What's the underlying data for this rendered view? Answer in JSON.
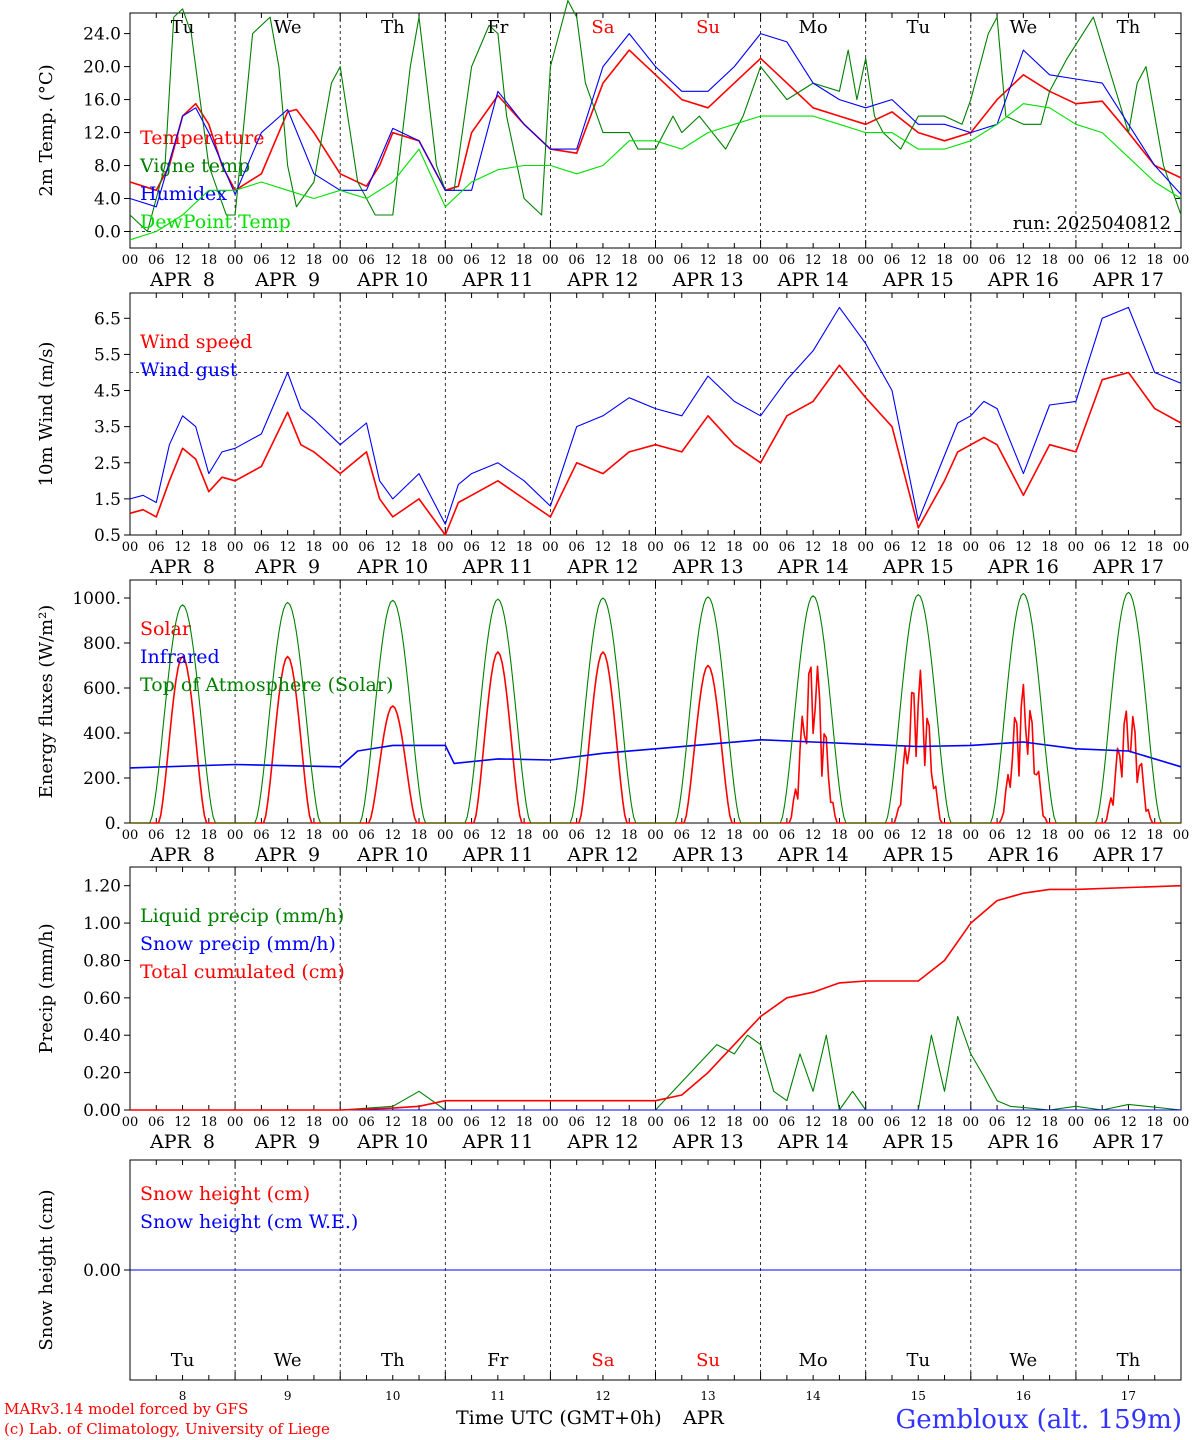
{
  "chart_data": [
    {
      "type": "line",
      "ylabel": "2m Temp. (°C)",
      "ylim": [
        -2,
        26.5
      ],
      "yticks": [
        "0.0",
        "4.0",
        "8.0",
        "12.0",
        "16.0",
        "20.0",
        "24.0"
      ],
      "yticks_values": [
        0,
        4,
        8,
        12,
        16,
        20,
        24
      ],
      "reference_line": 0,
      "annotation": "run: 2025040812",
      "day_labels": [
        "Tu",
        "We",
        "Th",
        "Fr",
        "Sa",
        "Su",
        "Mo",
        "Tu",
        "We",
        "Th"
      ],
      "series": [
        {
          "name": "Temperature",
          "color": "#ff0000",
          "x": [
            0,
            6,
            9,
            12,
            15,
            18,
            21,
            24,
            30,
            36,
            38,
            42,
            48,
            54,
            57,
            60,
            66,
            72,
            75,
            78,
            84,
            90,
            96,
            102,
            108,
            114,
            120,
            126,
            132,
            138,
            144,
            150,
            156,
            162,
            168,
            174,
            180,
            186,
            192,
            198,
            204,
            210,
            216,
            222,
            228,
            234,
            240
          ],
          "values": [
            6,
            5,
            8,
            14,
            15.5,
            13,
            8,
            5,
            7,
            14.5,
            14.8,
            12,
            7,
            5.5,
            8,
            12,
            11,
            5,
            5.5,
            12,
            16.5,
            13,
            10,
            9.5,
            18,
            22,
            19,
            16,
            15,
            18,
            21,
            18,
            15,
            14,
            13,
            14.5,
            12,
            11,
            12,
            16,
            19,
            17,
            15.5,
            15.8,
            12,
            8,
            6.5
          ]
        },
        {
          "name": "Vigne temp",
          "color": "#008000",
          "x": [
            0,
            4,
            8,
            10,
            12,
            14,
            18,
            22,
            24,
            28,
            32,
            34,
            36,
            38,
            42,
            46,
            48,
            52,
            54,
            56,
            60,
            64,
            66,
            70,
            72,
            74,
            78,
            82,
            84,
            86,
            90,
            94,
            96,
            100,
            102,
            104,
            108,
            112,
            114,
            116,
            120,
            124,
            126,
            130,
            136,
            140,
            144,
            150,
            156,
            162,
            164,
            166,
            168,
            170,
            172,
            176,
            180,
            186,
            190,
            192,
            196,
            198,
            200,
            204,
            208,
            210,
            214,
            220,
            228,
            230,
            232,
            236,
            240
          ],
          "values": [
            2,
            0,
            8,
            26,
            27,
            24,
            8,
            2,
            2,
            24,
            26,
            20,
            8,
            3,
            6,
            18,
            20,
            6,
            4,
            2,
            2,
            20,
            26,
            8,
            5,
            5,
            20,
            25,
            24,
            14,
            4,
            2,
            20,
            28,
            26,
            18,
            12,
            12,
            12,
            10,
            10,
            14,
            12,
            14,
            10,
            14,
            20,
            16,
            18,
            17,
            22,
            16,
            21,
            14,
            12,
            10,
            14,
            14,
            13,
            16,
            24,
            26,
            14,
            13,
            13,
            17,
            21,
            26,
            12,
            18,
            20,
            8,
            2
          ]
        },
        {
          "name": "Humidex",
          "color": "#0000ff",
          "x": [
            0,
            6,
            12,
            15,
            18,
            24,
            30,
            36,
            42,
            48,
            54,
            60,
            66,
            72,
            78,
            84,
            90,
            96,
            102,
            108,
            114,
            120,
            126,
            132,
            138,
            144,
            150,
            156,
            162,
            168,
            174,
            180,
            186,
            192,
            198,
            204,
            210,
            216,
            222,
            228,
            234,
            240
          ],
          "values": [
            4,
            3,
            14,
            15,
            12,
            4.5,
            12,
            14.8,
            7,
            5,
            5,
            12.5,
            11,
            5,
            5,
            17,
            13,
            10,
            10,
            20,
            24,
            20,
            17,
            17,
            20,
            24,
            23,
            18,
            16,
            15,
            16,
            13,
            13,
            12,
            13,
            22,
            19,
            18.5,
            18,
            13,
            8,
            4.5
          ]
        },
        {
          "name": "DewPoint Temp",
          "color": "#00e000",
          "x": [
            0,
            6,
            12,
            18,
            24,
            30,
            36,
            42,
            48,
            54,
            60,
            66,
            72,
            78,
            84,
            90,
            96,
            102,
            108,
            114,
            120,
            126,
            132,
            138,
            144,
            150,
            156,
            162,
            168,
            174,
            180,
            186,
            192,
            198,
            204,
            210,
            216,
            222,
            228,
            234,
            240
          ],
          "values": [
            -1,
            0,
            2,
            5,
            5,
            6,
            5,
            4,
            5,
            4,
            6,
            10,
            3,
            6,
            7.5,
            8,
            8,
            7,
            8,
            11,
            11,
            10,
            12,
            13,
            14,
            14,
            14,
            13,
            12,
            12,
            10,
            10,
            11,
            13,
            15.5,
            15,
            13,
            12,
            9,
            6,
            4
          ]
        }
      ]
    },
    {
      "type": "line",
      "ylabel": "10m Wind (m/s)",
      "ylim": [
        0.5,
        7.2
      ],
      "yticks": [
        "0.5",
        "1.5",
        "2.5",
        "3.5",
        "4.5",
        "5.5",
        "6.5"
      ],
      "yticks_values": [
        0.5,
        1.5,
        2.5,
        3.5,
        4.5,
        5.5,
        6.5
      ],
      "reference_line": 5,
      "series": [
        {
          "name": "Wind speed",
          "color": "#ff0000",
          "x": [
            0,
            3,
            6,
            9,
            12,
            15,
            18,
            21,
            24,
            30,
            36,
            39,
            42,
            48,
            54,
            57,
            60,
            66,
            72,
            75,
            78,
            84,
            90,
            96,
            102,
            108,
            114,
            120,
            126,
            132,
            138,
            144,
            150,
            156,
            162,
            168,
            174,
            180,
            186,
            189,
            192,
            195,
            198,
            204,
            210,
            216,
            222,
            228,
            234,
            240
          ],
          "values": [
            1.1,
            1.2,
            1.0,
            2.0,
            2.9,
            2.6,
            1.7,
            2.1,
            2.0,
            2.4,
            3.9,
            3.0,
            2.8,
            2.2,
            2.8,
            1.5,
            1.0,
            1.5,
            0.5,
            1.4,
            1.6,
            2.0,
            1.5,
            1.0,
            2.5,
            2.2,
            2.8,
            3.0,
            2.8,
            3.8,
            3.0,
            2.5,
            3.8,
            4.2,
            5.2,
            4.3,
            3.5,
            0.7,
            2.0,
            2.8,
            3.0,
            3.2,
            3.0,
            1.6,
            3.0,
            2.8,
            4.8,
            5.0,
            4.0,
            3.6
          ]
        },
        {
          "name": "Wind gust",
          "color": "#0000ff",
          "x": [
            0,
            3,
            6,
            9,
            12,
            15,
            18,
            21,
            24,
            30,
            36,
            39,
            42,
            48,
            54,
            57,
            60,
            66,
            72,
            75,
            78,
            84,
            90,
            96,
            102,
            108,
            114,
            120,
            126,
            132,
            138,
            144,
            150,
            156,
            162,
            168,
            174,
            180,
            186,
            189,
            192,
            195,
            198,
            204,
            210,
            216,
            222,
            228,
            234,
            240
          ],
          "values": [
            1.5,
            1.6,
            1.4,
            3.0,
            3.8,
            3.5,
            2.2,
            2.8,
            2.9,
            3.3,
            5.0,
            4.0,
            3.7,
            3.0,
            3.6,
            2.0,
            1.5,
            2.2,
            0.8,
            1.9,
            2.2,
            2.5,
            2.0,
            1.3,
            3.5,
            3.8,
            4.3,
            4.0,
            3.8,
            4.9,
            4.2,
            3.8,
            4.8,
            5.6,
            6.8,
            5.8,
            4.5,
            0.9,
            2.7,
            3.6,
            3.8,
            4.2,
            4.0,
            2.2,
            4.1,
            4.2,
            6.5,
            6.8,
            5.0,
            4.7
          ]
        }
      ]
    },
    {
      "type": "line",
      "ylabel": "Energy fluxes (W/m²)",
      "ylim": [
        0,
        1080
      ],
      "yticks": [
        "0.",
        "200.",
        "400.",
        "600.",
        "800.",
        "1000."
      ],
      "yticks_values": [
        0,
        200,
        400,
        600,
        800,
        1000
      ],
      "series": [
        {
          "name": "Solar",
          "color": "#ff0000",
          "peaks": [
            {
              "day": 0,
              "value": 740
            },
            {
              "day": 1,
              "value": 740
            },
            {
              "day": 2,
              "value": 520
            },
            {
              "day": 3,
              "value": 760
            },
            {
              "day": 4,
              "value": 760
            },
            {
              "day": 5,
              "value": 700
            },
            {
              "day": 6,
              "value": 750
            },
            {
              "day": 7,
              "value": 690
            },
            {
              "day": 8,
              "value": 620
            },
            {
              "day": 9,
              "value": 520
            }
          ]
        },
        {
          "name": "Infrared",
          "color": "#0000ff",
          "x": [
            0,
            24,
            48,
            52,
            60,
            72,
            74,
            84,
            96,
            108,
            120,
            132,
            144,
            156,
            168,
            180,
            192,
            204,
            216,
            228,
            240
          ],
          "values": [
            245,
            260,
            250,
            320,
            345,
            345,
            265,
            285,
            280,
            310,
            330,
            350,
            370,
            360,
            350,
            340,
            345,
            360,
            330,
            320,
            250
          ]
        },
        {
          "name": "Top of Atmosphere (Solar)",
          "color": "#008000",
          "peaks": [
            {
              "day": 0,
              "value": 970
            },
            {
              "day": 1,
              "value": 980
            },
            {
              "day": 2,
              "value": 990
            },
            {
              "day": 3,
              "value": 995
            },
            {
              "day": 4,
              "value": 1000
            },
            {
              "day": 5,
              "value": 1005
            },
            {
              "day": 6,
              "value": 1010
            },
            {
              "day": 7,
              "value": 1015
            },
            {
              "day": 8,
              "value": 1020
            },
            {
              "day": 9,
              "value": 1025
            }
          ]
        }
      ]
    },
    {
      "type": "line",
      "ylabel": "Precip (mm/h)",
      "ylim": [
        0,
        1.3
      ],
      "yticks": [
        "0.00",
        "0.20",
        "0.40",
        "0.60",
        "0.80",
        "1.00",
        "1.20"
      ],
      "yticks_values": [
        0,
        0.2,
        0.4,
        0.6,
        0.8,
        1.0,
        1.2
      ],
      "series": [
        {
          "name": "Liquid precip (mm/h)",
          "color": "#008000",
          "x": [
            0,
            48,
            60,
            66,
            69,
            72,
            120,
            130,
            134,
            138,
            141,
            144,
            147,
            150,
            153,
            156,
            159,
            162,
            165,
            168,
            180,
            183,
            186,
            189,
            192,
            195,
            198,
            201,
            210,
            216,
            222,
            228,
            240
          ],
          "values": [
            0,
            0,
            0.02,
            0.1,
            0.05,
            0,
            0,
            0.25,
            0.35,
            0.3,
            0.4,
            0.35,
            0.1,
            0.05,
            0.3,
            0.1,
            0.4,
            0,
            0.1,
            0,
            0,
            0.4,
            0.1,
            0.5,
            0.3,
            0.18,
            0.05,
            0.02,
            0,
            0.02,
            0,
            0.03,
            0
          ]
        },
        {
          "name": "Snow precip (mm/h)",
          "color": "#0000ff",
          "x": [
            0,
            240
          ],
          "values": [
            0,
            0
          ]
        },
        {
          "name": "Total cumulated (cm)",
          "color": "#ff0000",
          "x": [
            0,
            48,
            60,
            66,
            72,
            96,
            120,
            126,
            132,
            138,
            144,
            150,
            156,
            162,
            168,
            180,
            186,
            192,
            198,
            204,
            210,
            216,
            240
          ],
          "values": [
            0,
            0,
            0.01,
            0.02,
            0.05,
            0.05,
            0.05,
            0.08,
            0.2,
            0.35,
            0.5,
            0.6,
            0.63,
            0.68,
            0.69,
            0.69,
            0.8,
            1.0,
            1.12,
            1.16,
            1.18,
            1.18,
            1.2
          ]
        }
      ]
    },
    {
      "type": "line",
      "ylabel": "Snow height (cm)",
      "ylim": [
        -1,
        1
      ],
      "yticks": [
        "0.00"
      ],
      "yticks_values": [
        0
      ],
      "series": [
        {
          "name": "Snow height (cm)",
          "color": "#ff0000",
          "x": [
            0,
            240
          ],
          "values": [
            0,
            0
          ]
        },
        {
          "name": "Snow height (cm W.E.)",
          "color": "#0000ff",
          "x": [
            0,
            240
          ],
          "values": [
            0,
            0
          ]
        }
      ]
    }
  ],
  "x_axis": {
    "hour_ticks": [
      "00",
      "06",
      "12",
      "18"
    ],
    "date_labels": [
      "APR  8",
      "APR  9",
      "APR 10",
      "APR 11",
      "APR 12",
      "APR 13",
      "APR 14",
      "APR 15",
      "APR 16",
      "APR 17"
    ],
    "weekday_labels": [
      "Tu",
      "We",
      "Th",
      "Fr",
      "Sa",
      "Su",
      "Mo",
      "Tu",
      "We",
      "Th"
    ],
    "weekend_color": "#ff0000",
    "day_numbers": [
      "8",
      "9",
      "10",
      "11",
      "12",
      "13",
      "14",
      "15",
      "16",
      "17"
    ],
    "xlabel": "Time UTC (GMT+0h)",
    "month": "APR"
  },
  "footer": {
    "model": "MARv3.14 model forced by GFS",
    "copyright": "(c) Lab. of Climatology, University of Liege",
    "location": "Gembloux (alt. 159m)"
  }
}
